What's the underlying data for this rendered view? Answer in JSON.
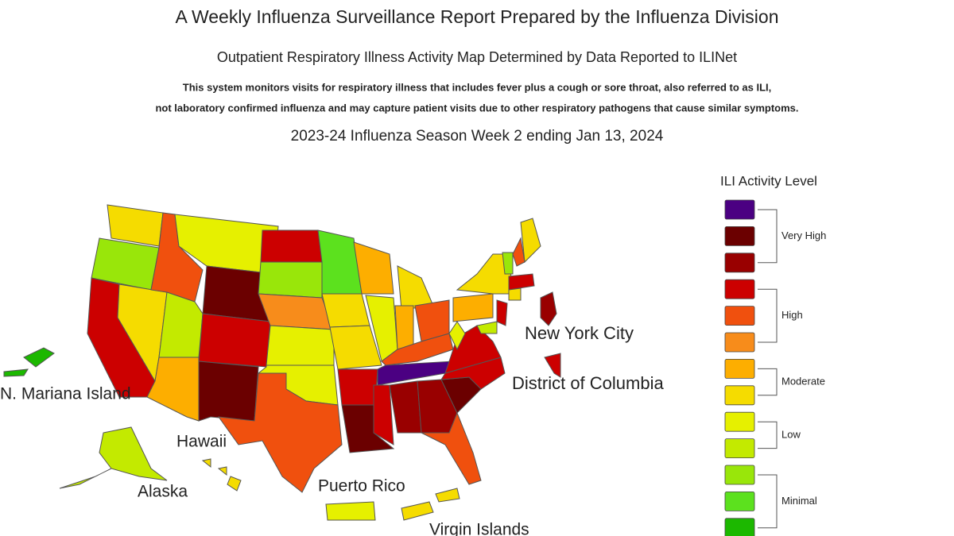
{
  "header": {
    "title": "A Weekly Influenza Surveillance Report Prepared by the Influenza Division",
    "subtitle": "Outpatient Respiratory Illness Activity Map Determined by Data Reported to ILINet",
    "description": [
      "This system monitors visits for respiratory illness that includes fever plus a cough or sore throat, also referred to as ILI,",
      "not laboratory confirmed influenza and may capture patient visits due to other respiratory pathogens that cause similar symptoms."
    ],
    "week": "2023-24 Influenza Season Week 2 ending Jan 13, 2024"
  },
  "map": {
    "labels": {
      "mariana": "N. Mariana Island",
      "hawaii": "Hawaii",
      "alaska": "Alaska",
      "puerto_rico": "Puerto Rico",
      "virgin_islands": "Virgin Islands",
      "nyc": "New York City",
      "dc": "District of Columbia"
    }
  },
  "legend": {
    "title": "ILI Activity Level",
    "levels": [
      "#4b0082",
      "#6b0000",
      "#990000",
      "#cc0000",
      "#f0500e",
      "#f78c1b",
      "#fdae00",
      "#f5dc00",
      "#e6f000",
      "#c3ea00",
      "#99e60a",
      "#5ce11e",
      "#1cb800"
    ],
    "groups": [
      "Very High",
      "High",
      "Moderate",
      "Low",
      "Minimal"
    ]
  }
}
